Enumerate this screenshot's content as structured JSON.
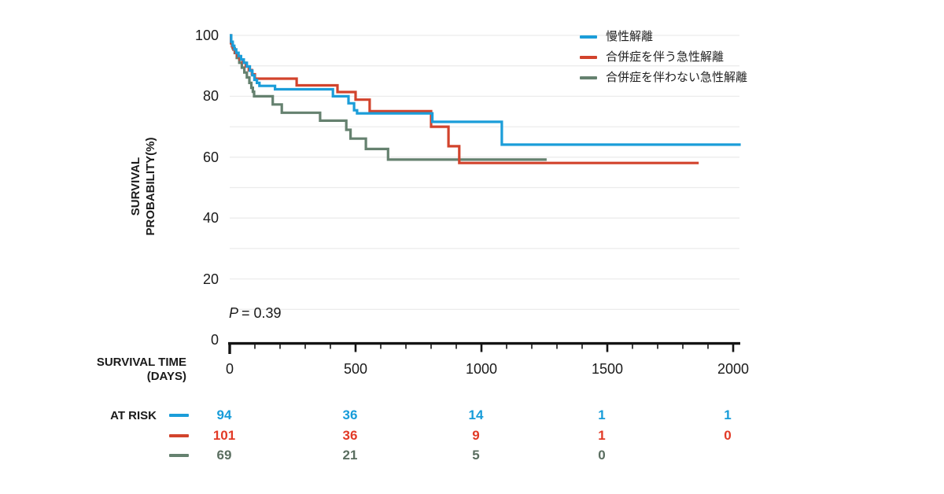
{
  "chart_data": {
    "type": "line",
    "subtype": "kaplan-meier-step",
    "x_axis": {
      "title_lines": [
        "SURVIVAL TIME",
        "(DAYS)"
      ],
      "ticks": [
        {
          "day": 0,
          "label": "0"
        },
        {
          "day": 500,
          "label": "500"
        },
        {
          "day": 1000,
          "label": "1000"
        },
        {
          "day": 1500,
          "label": "1500"
        },
        {
          "day": 2000,
          "label": "2000"
        }
      ],
      "minor_tick_step_days": 100,
      "range_days": [
        0,
        2030
      ]
    },
    "y_axis": {
      "title_lines": [
        "SURVIVAL",
        "PROBABILITY(%)"
      ],
      "ticks": [
        {
          "pct": 100,
          "label": "100"
        },
        {
          "pct": 80,
          "label": "80"
        },
        {
          "pct": 60,
          "label": "60"
        },
        {
          "pct": 40,
          "label": "40"
        },
        {
          "pct": 20,
          "label": "20"
        },
        {
          "pct": 0,
          "label": "0"
        }
      ],
      "gridline_step_pct": 10,
      "range_pct": [
        0,
        100
      ]
    },
    "p_value": {
      "symbol": "P",
      "value": "= 0.39"
    },
    "legend_position": "top-right",
    "grid": true,
    "series": [
      {
        "name": "慢性解離",
        "color": "#1B9DD9",
        "text_color": "#179CD9",
        "points": [
          [
            0,
            100
          ],
          [
            6,
            97.9
          ],
          [
            12,
            96.6
          ],
          [
            18,
            95.4
          ],
          [
            26,
            94.3
          ],
          [
            35,
            93.2
          ],
          [
            45,
            92.1
          ],
          [
            56,
            91
          ],
          [
            68,
            89.8
          ],
          [
            80,
            88.4
          ],
          [
            90,
            86.9
          ],
          [
            98,
            85.4
          ],
          [
            108,
            84.4
          ],
          [
            118,
            83.4
          ],
          [
            180,
            82.3
          ],
          [
            410,
            80
          ],
          [
            472,
            77.7
          ],
          [
            494,
            75.4
          ],
          [
            506,
            74.4
          ],
          [
            805,
            71.6
          ],
          [
            1081,
            64.1
          ],
          [
            2030,
            64.1
          ]
        ]
      },
      {
        "name": "合併症を伴う急性解離",
        "color": "#D2432C",
        "text_color": "#E23A26",
        "points": [
          [
            0,
            100
          ],
          [
            5,
            97.5
          ],
          [
            9,
            96.4
          ],
          [
            15,
            95.3
          ],
          [
            22,
            94.2
          ],
          [
            30,
            93.2
          ],
          [
            40,
            92.1
          ],
          [
            52,
            91
          ],
          [
            64,
            89.8
          ],
          [
            76,
            88.6
          ],
          [
            88,
            87.2
          ],
          [
            100,
            85.8
          ],
          [
            266,
            83.6
          ],
          [
            428,
            81.4
          ],
          [
            500,
            78.9
          ],
          [
            556,
            75.1
          ],
          [
            800,
            70
          ],
          [
            869,
            63.6
          ],
          [
            912,
            58.1
          ],
          [
            1863,
            58.1
          ]
        ]
      },
      {
        "name": "合併症を伴わない急性解離",
        "color": "#65816F",
        "text_color": "#5A6E60",
        "points": [
          [
            0,
            100
          ],
          [
            6,
            97.4
          ],
          [
            12,
            95.8
          ],
          [
            20,
            94.2
          ],
          [
            28,
            92.6
          ],
          [
            38,
            91
          ],
          [
            48,
            89.4
          ],
          [
            58,
            87.8
          ],
          [
            68,
            86.2
          ],
          [
            78,
            84.4
          ],
          [
            86,
            82.8
          ],
          [
            92,
            81.5
          ],
          [
            97,
            80
          ],
          [
            171,
            77.3
          ],
          [
            207,
            74.6
          ],
          [
            359,
            72
          ],
          [
            463,
            69
          ],
          [
            480,
            66.1
          ],
          [
            541,
            62.7
          ],
          [
            629,
            59.2
          ],
          [
            1259,
            59.2
          ]
        ]
      }
    ],
    "at_risk": {
      "label": "AT RISK",
      "column_days": [
        0,
        500,
        1000,
        1500,
        2000
      ],
      "rows": [
        {
          "series": 0,
          "values": [
            "94",
            "36",
            "14",
            "1",
            "1"
          ]
        },
        {
          "series": 1,
          "values": [
            "101",
            "36",
            "9",
            "1",
            "0"
          ]
        },
        {
          "series": 2,
          "values": [
            "69",
            "21",
            "5",
            "0"
          ]
        }
      ]
    },
    "style": {
      "grid_color": "#ECECEC",
      "axis_color": "#141414",
      "label_color": "#1A1A1A"
    }
  }
}
